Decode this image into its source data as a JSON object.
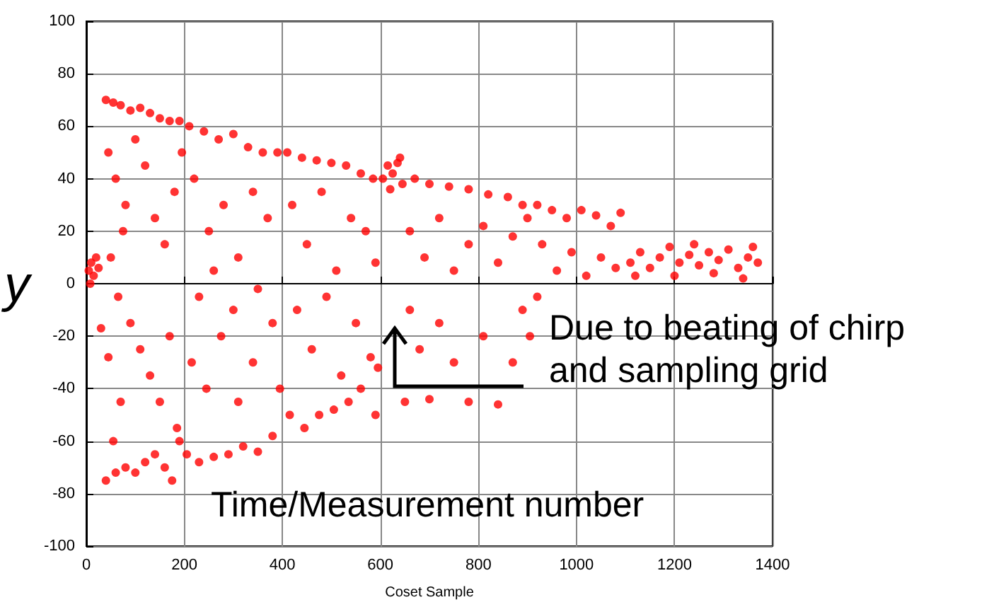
{
  "chart_data": {
    "type": "scatter",
    "xlabel": "Coset Sample",
    "ylabel": "y",
    "annotations": [
      "Due to beating of chirp and sampling grid",
      "Time/Measurement number"
    ],
    "xlim": [
      0,
      1400
    ],
    "xticks": [
      0,
      200,
      400,
      600,
      800,
      1000,
      1200,
      1400
    ],
    "ylim": [
      -100,
      100
    ],
    "yticks": [
      -100,
      -80,
      -60,
      -40,
      -20,
      0,
      20,
      40,
      60,
      80,
      100
    ],
    "grid": true,
    "marker": "circle",
    "series": [
      {
        "color": "#ff0000",
        "x": [
          5,
          10,
          15,
          20,
          8,
          25,
          40,
          55,
          70,
          90,
          110,
          130,
          150,
          170,
          190,
          45,
          60,
          75,
          50,
          80,
          100,
          120,
          140,
          160,
          180,
          195,
          65,
          90,
          110,
          130,
          150,
          170,
          185,
          70,
          55,
          40,
          60,
          80,
          100,
          120,
          140,
          160,
          175,
          190,
          45,
          30,
          210,
          240,
          270,
          300,
          330,
          360,
          390,
          220,
          250,
          280,
          310,
          340,
          370,
          230,
          260,
          300,
          350,
          215,
          245,
          275,
          310,
          340,
          380,
          205,
          230,
          260,
          290,
          320,
          350,
          380,
          395,
          410,
          440,
          470,
          500,
          530,
          560,
          585,
          420,
          450,
          480,
          510,
          540,
          570,
          590,
          430,
          460,
          490,
          520,
          550,
          580,
          415,
          445,
          475,
          505,
          535,
          560,
          590,
          595,
          605,
          615,
          625,
          635,
          645,
          620,
          640,
          670,
          700,
          740,
          780,
          820,
          860,
          890,
          660,
          690,
          720,
          750,
          780,
          810,
          840,
          870,
          900,
          660,
          680,
          700,
          650,
          720,
          750,
          780,
          810,
          840,
          870,
          890,
          920,
          950,
          980,
          1010,
          1040,
          1070,
          1090,
          930,
          960,
          990,
          1020,
          1050,
          1080,
          920,
          905,
          1110,
          1130,
          1150,
          1170,
          1190,
          1210,
          1230,
          1250,
          1270,
          1290,
          1310,
          1330,
          1350,
          1370,
          1120,
          1200,
          1280,
          1360,
          1240,
          1340
        ],
        "values": [
          5,
          8,
          3,
          10,
          0,
          6,
          70,
          69,
          68,
          66,
          67,
          65,
          63,
          62,
          62,
          50,
          40,
          20,
          10,
          30,
          55,
          45,
          25,
          15,
          35,
          50,
          -5,
          -15,
          -25,
          -35,
          -45,
          -20,
          -55,
          -45,
          -60,
          -75,
          -72,
          -70,
          -72,
          -68,
          -65,
          -70,
          -75,
          -60,
          -28,
          -17,
          60,
          58,
          55,
          57,
          52,
          50,
          50,
          40,
          20,
          30,
          10,
          35,
          25,
          -5,
          5,
          -10,
          -2,
          -30,
          -40,
          -20,
          -45,
          -30,
          -15,
          -65,
          -68,
          -66,
          -65,
          -62,
          -64,
          -58,
          -40,
          50,
          48,
          47,
          46,
          45,
          42,
          40,
          30,
          15,
          35,
          5,
          25,
          20,
          8,
          -10,
          -25,
          -5,
          -35,
          -15,
          -28,
          -50,
          -55,
          -50,
          -48,
          -45,
          -40,
          -50,
          -32,
          40,
          45,
          42,
          46,
          38,
          36,
          48,
          40,
          38,
          37,
          36,
          34,
          33,
          30,
          20,
          10,
          25,
          5,
          15,
          22,
          8,
          18,
          25,
          -10,
          -25,
          -44,
          -45,
          -15,
          -30,
          -45,
          -20,
          -46,
          -30,
          -10,
          30,
          28,
          25,
          28,
          26,
          22,
          27,
          15,
          5,
          12,
          3,
          10,
          6,
          -5,
          -20,
          8,
          12,
          6,
          10,
          14,
          8,
          11,
          7,
          12,
          9,
          13,
          6,
          10,
          8,
          3,
          3,
          4,
          14,
          15,
          2
        ]
      }
    ]
  }
}
